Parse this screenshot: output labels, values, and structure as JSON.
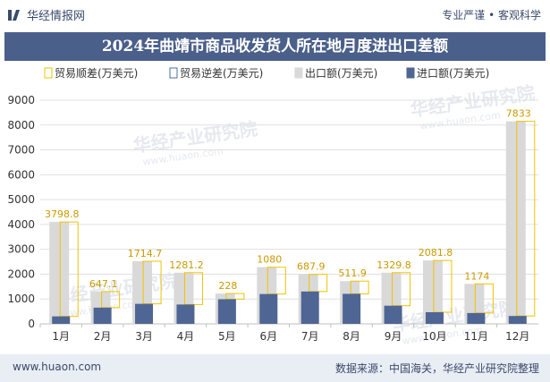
{
  "header": {
    "brand": "华经情报网",
    "tagline": "专业严谨 • 客观科学"
  },
  "title": "2024年曲靖市商品收发货人所在地月度进出口差额",
  "legend": [
    "贸易顺差(万美元)",
    "贸易逆差(万美元)",
    "出口额(万美元)",
    "进口额(万美元)"
  ],
  "watermark": "华经产业研究院",
  "watermark_url": "www.huaon.com",
  "footer": {
    "site": "www.huaon.com",
    "source": "数据来源：中国海关，华经产业研究院整理"
  },
  "colors": {
    "surplus": "#f2c200",
    "deficit": "#4a6fa5",
    "export": "#d9d9d9",
    "import": "#4f6694",
    "title_bg": "#4a5f8a"
  },
  "chart_data": {
    "type": "bar",
    "categories": [
      "1月",
      "2月",
      "3月",
      "4月",
      "5月",
      "6月",
      "7月",
      "8月",
      "9月",
      "10月",
      "11月",
      "12月"
    ],
    "ylim": [
      0,
      9000
    ],
    "yticks": [
      0,
      1000,
      2000,
      3000,
      4000,
      5000,
      6000,
      7000,
      8000,
      9000
    ],
    "series": [
      {
        "name": "贸易顺差(万美元)",
        "values": [
          3798.8,
          647.1,
          1714.7,
          1281.2,
          228,
          1080,
          687.9,
          511.9,
          1329.8,
          2081.8,
          1174,
          7833
        ]
      },
      {
        "name": "贸易逆差(万美元)",
        "values": [
          0,
          0,
          0,
          0,
          0,
          0,
          0,
          0,
          0,
          0,
          0,
          0
        ]
      },
      {
        "name": "出口额(万美元)",
        "values": [
          4100,
          1300,
          2520,
          2060,
          1220,
          2280,
          1990,
          1720,
          2060,
          2550,
          1610,
          8150
        ]
      },
      {
        "name": "进口额(万美元)",
        "values": [
          301.2,
          652.9,
          805.3,
          778.8,
          992,
          1200,
          1302.1,
          1208.1,
          730.2,
          468.2,
          436,
          317
        ]
      }
    ],
    "data_labels": [
      "3798.8",
      "647.1",
      "1714.7",
      "1281.2",
      "228",
      "1080",
      "687.9",
      "511.9",
      "1329.8",
      "2081.8",
      "1174",
      "7833"
    ]
  }
}
